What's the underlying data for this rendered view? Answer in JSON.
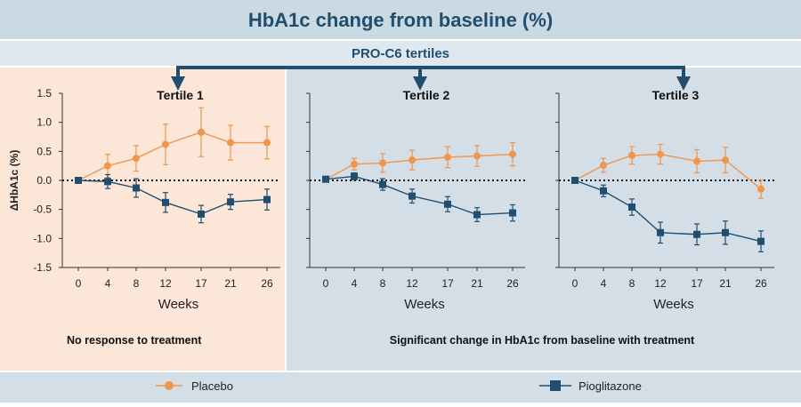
{
  "title": "HbA1c change from baseline (%)",
  "subtitle": "PRO-C6 tertiles",
  "notes": {
    "left": "No response to treatment",
    "right": "Significant change in HbA1c from baseline with treatment"
  },
  "legend": {
    "placement": "bottom",
    "items": [
      {
        "name": "Placebo",
        "color": "#F0954A",
        "marker": "circle"
      },
      {
        "name": "Pioglitazone",
        "color": "#1F4E6E",
        "marker": "square"
      }
    ]
  },
  "colors": {
    "title_band": "#CBD9E3",
    "subtitle_band": "#DFE8EE",
    "left_panel_bg": "#FCE6D8",
    "right_panel_bg": "#D3DEE7",
    "legend_band": "#D3DEE7",
    "arrow": "#1F4E6E",
    "title_text": "#1F4E6E"
  },
  "chart_data": [
    {
      "type": "line",
      "title": "Tertile 1",
      "xlabel": "Weeks",
      "ylabel": "ΔHbA1c (%)",
      "x": [
        "0",
        "4",
        "8",
        "12",
        "17",
        "21",
        "26"
      ],
      "ylim": [
        -1.5,
        1.5
      ],
      "yticks": [
        "1.5",
        "1.0",
        "0.5",
        "0.0",
        "-0.5",
        "-1.0",
        "-1.5"
      ],
      "reference_line": 0,
      "series": [
        {
          "name": "Placebo",
          "values": [
            0.0,
            0.25,
            0.38,
            0.62,
            0.83,
            0.65,
            0.65
          ],
          "err": [
            0,
            0.2,
            0.22,
            0.35,
            0.42,
            0.3,
            0.28
          ]
        },
        {
          "name": "Pioglitazone",
          "values": [
            0.0,
            -0.02,
            -0.13,
            -0.38,
            -0.58,
            -0.37,
            -0.33
          ],
          "err": [
            0,
            0.12,
            0.16,
            0.17,
            0.15,
            0.13,
            0.18
          ]
        }
      ]
    },
    {
      "type": "line",
      "title": "Tertile 2",
      "xlabel": "Weeks",
      "ylabel": "",
      "x": [
        "0",
        "4",
        "8",
        "12",
        "17",
        "21",
        "26"
      ],
      "ylim": [
        -1.5,
        1.5
      ],
      "yticks": [],
      "reference_line": 0,
      "series": [
        {
          "name": "Placebo",
          "values": [
            0.02,
            0.28,
            0.3,
            0.35,
            0.4,
            0.42,
            0.45
          ],
          "err": [
            0,
            0.1,
            0.16,
            0.17,
            0.18,
            0.18,
            0.2
          ]
        },
        {
          "name": "Pioglitazone",
          "values": [
            0.02,
            0.07,
            -0.07,
            -0.27,
            -0.41,
            -0.59,
            -0.56
          ],
          "err": [
            0,
            0.06,
            0.1,
            0.12,
            0.13,
            0.12,
            0.14
          ]
        }
      ]
    },
    {
      "type": "line",
      "title": "Tertile 3",
      "xlabel": "Weeks",
      "ylabel": "",
      "x": [
        "0",
        "4",
        "8",
        "12",
        "17",
        "21",
        "26"
      ],
      "ylim": [
        -1.5,
        1.5
      ],
      "yticks": [],
      "reference_line": 0,
      "series": [
        {
          "name": "Placebo",
          "values": [
            0.0,
            0.26,
            0.43,
            0.45,
            0.33,
            0.35,
            -0.15
          ],
          "err": [
            0,
            0.12,
            0.15,
            0.17,
            0.2,
            0.22,
            0.16
          ]
        },
        {
          "name": "Pioglitazone",
          "values": [
            0.0,
            -0.18,
            -0.46,
            -0.9,
            -0.93,
            -0.9,
            -1.05
          ],
          "err": [
            0,
            0.1,
            0.14,
            0.18,
            0.18,
            0.2,
            0.18
          ]
        }
      ]
    }
  ]
}
